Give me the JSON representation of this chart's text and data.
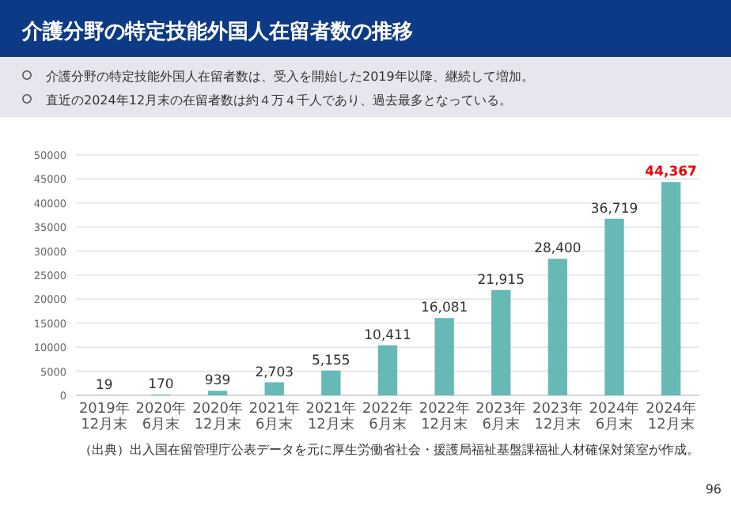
{
  "chart_data": {
    "type": "bar",
    "title": "介護分野の特定技能外国人在留者数の推移",
    "subtitle": "介護分野の特定技能外国人在留者数は、受入を開始した2019年以降、継続して増加。",
    "categories": [
      "2019年12月末",
      "2020年6月末",
      "2020年12月末",
      "2021年6月末",
      "2021年12月末",
      "2022年6月末",
      "2022年12月末",
      "2023年6月末",
      "2023年12月末",
      "2024年6月末",
      "2024年12月末"
    ],
    "values": [
      19,
      170,
      939,
      2703,
      5155,
      10411,
      16081,
      21915,
      28400,
      36719,
      44367
    ],
    "color": "#66b9b5",
    "value_labels": [
      "19",
      "170",
      "939",
      "2,703",
      "5,155",
      "10,411",
      "16,081",
      "21,915",
      "28,400",
      "36,719",
      null
    ],
    "ylim": [
      0,
      50000
    ],
    "yticks": [
      0,
      5000,
      10000,
      15000,
      20000,
      25000,
      30000,
      35000,
      40000,
      45000,
      50000
    ],
    "grid": "y",
    "annotations": [
      "直近の2024年12月末の在留者数は約４万４千人であり、過去最多となっている。",
      {
        "text": "44,367",
        "x": "2024年12月末",
        "y": 44367
      },
      "（出典）出入国在留管理庁公表データを元に厚生労働省社会・援護局福祉基盤課福祉人材確保対策室が作成。",
      "96"
    ]
  }
}
